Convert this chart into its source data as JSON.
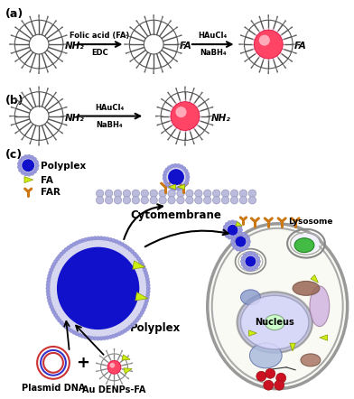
{
  "fig_width": 3.92,
  "fig_height": 4.42,
  "dpi": 100,
  "background": "#ffffff",
  "panel_a_label": "(a)",
  "panel_b_label": "(b)",
  "panel_c_label": "(c)",
  "arrow1_text_top": "Folic acid (FA)",
  "arrow1_text_bot": "EDC",
  "arrow2_text_top": "HAuCl₄",
  "arrow2_text_bot": "NaBH₄",
  "arrow3_text_top": "HAuCl₄",
  "arrow3_text_bot": "NaBH₄",
  "nh2_label": "NH₂",
  "fa_label": "FA",
  "polyplex_label": "Polyplex",
  "fa_legend": "FA",
  "far_legend": "FAR",
  "cytomembrane_label": "Cytomembrane",
  "lysosome_label": "Lysosome",
  "nucleus_label": "Nucleus",
  "plasmid_label": "Plasmid DNA",
  "denp_label": "Au DENPs-FA",
  "polyplex_c_label": "Polyplex",
  "colors": {
    "dendrimer_edge": "#555555",
    "dendrimer_fill": "#ffffff",
    "au_nanoparticle_outer": "#ff4466",
    "au_nanoparticle_inner": "#ff8899",
    "au_highlight": "#ffccdd",
    "polyplex_blue": "#1111cc",
    "polyplex_ring": "#9999dd",
    "cell_border": "#888888",
    "cell_fill": "#fafaf5",
    "nucleus_outer": "#aaaacc",
    "nucleus_fill": "#ddddff",
    "nucleus_center": "#ccffcc",
    "lysosome_fill": "#44bb44",
    "lysosome_border": "#339933",
    "fa_triangle": "#ccee11",
    "far_receptor": "#cc7711",
    "cytomembrane_dots": "#9999bb",
    "cytomembrane_dots2": "#bbbbdd",
    "mitochondria1": "#996655",
    "mitochondria2": "#aa7766",
    "organelle_blue": "#8899cc",
    "organelle_blue2": "#6677bb",
    "er_fill": "#ccaadd",
    "plasmid_color1": "#cc3333",
    "plasmid_color2": "#3333cc",
    "text_color": "#000000",
    "small_nucleus_fill": "#ccccee",
    "vacuole_fill": "#aabbdd"
  }
}
